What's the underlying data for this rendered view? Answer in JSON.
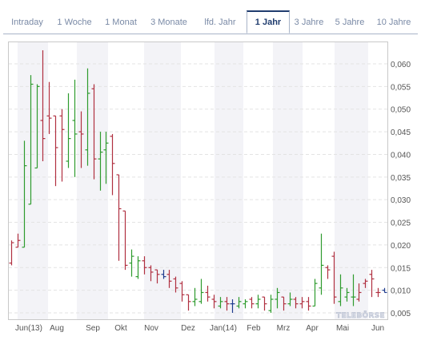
{
  "tabs": [
    {
      "label": "Intraday"
    },
    {
      "label": "1 Woche"
    },
    {
      "label": "1 Monat"
    },
    {
      "label": "3 Monate"
    },
    {
      "label": "lfd. Jahr"
    },
    {
      "label": "1 Jahr",
      "active": true
    },
    {
      "label": "3 Jahre"
    },
    {
      "label": "5 Jahre"
    },
    {
      "label": "10 Jahre"
    }
  ],
  "watermark": "TELEBÖRSE",
  "colors": {
    "up": "#2e9b2e",
    "down": "#b03040",
    "neutral": "#1f3c8e",
    "band": "#f3f3f7",
    "grid": "#e3e3e3"
  },
  "chart_data": {
    "type": "ohlc",
    "y_axis": {
      "min": 0.005,
      "max": 0.06,
      "ticks": [
        "0,005",
        "0,010",
        "0,015",
        "0,020",
        "0,025",
        "0,030",
        "0,035",
        "0,040",
        "0,045",
        "0,050",
        "0,055",
        "0,060"
      ]
    },
    "x_labels": [
      "Jun(13)",
      "Aug",
      "Sep",
      "Okt",
      "Nov",
      "Dez",
      "Jan(14)",
      "Feb",
      "Mrz",
      "Apr",
      "Mai",
      "Jun"
    ],
    "grid": true,
    "weekly": [
      {
        "h": 0.021,
        "l": 0.0155,
        "o": 0.016,
        "c": 0.0205,
        "dir": "down"
      },
      {
        "h": 0.0225,
        "l": 0.0195,
        "o": 0.0195,
        "c": 0.021,
        "dir": "down"
      },
      {
        "h": 0.043,
        "l": 0.0195,
        "o": 0.0195,
        "c": 0.0375,
        "dir": "up"
      },
      {
        "h": 0.0575,
        "l": 0.029,
        "o": 0.029,
        "c": 0.0555,
        "dir": "up"
      },
      {
        "h": 0.0555,
        "l": 0.037,
        "o": 0.037,
        "c": 0.055,
        "dir": "up"
      },
      {
        "h": 0.063,
        "l": 0.0385,
        "o": 0.0475,
        "c": 0.0435,
        "dir": "down"
      },
      {
        "h": 0.056,
        "l": 0.0445,
        "o": 0.0485,
        "c": 0.048,
        "dir": "down"
      },
      {
        "h": 0.0485,
        "l": 0.033,
        "o": 0.0485,
        "c": 0.0415,
        "dir": "down"
      },
      {
        "h": 0.05,
        "l": 0.034,
        "o": 0.0485,
        "c": 0.0455,
        "dir": "down"
      },
      {
        "h": 0.0535,
        "l": 0.037,
        "o": 0.0385,
        "c": 0.0435,
        "dir": "up"
      },
      {
        "h": 0.0565,
        "l": 0.035,
        "o": 0.0475,
        "c": 0.0445,
        "dir": "up"
      },
      {
        "h": 0.0495,
        "l": 0.037,
        "o": 0.045,
        "c": 0.0445,
        "dir": "down"
      },
      {
        "h": 0.059,
        "l": 0.0375,
        "o": 0.041,
        "c": 0.0535,
        "dir": "up"
      },
      {
        "h": 0.0555,
        "l": 0.0345,
        "o": 0.0545,
        "c": 0.039,
        "dir": "down"
      },
      {
        "h": 0.045,
        "l": 0.032,
        "o": 0.039,
        "c": 0.0405,
        "dir": "up"
      },
      {
        "h": 0.045,
        "l": 0.0335,
        "o": 0.041,
        "c": 0.0425,
        "dir": "up"
      },
      {
        "h": 0.0445,
        "l": 0.031,
        "o": 0.044,
        "c": 0.038,
        "dir": "down"
      },
      {
        "h": 0.0355,
        "l": 0.0165,
        "o": 0.0355,
        "c": 0.028,
        "dir": "down"
      },
      {
        "h": 0.0275,
        "l": 0.0145,
        "o": 0.0275,
        "c": 0.0155,
        "dir": "down"
      },
      {
        "h": 0.019,
        "l": 0.013,
        "o": 0.016,
        "c": 0.0175,
        "dir": "up"
      },
      {
        "h": 0.0175,
        "l": 0.0125,
        "o": 0.013,
        "c": 0.0165,
        "dir": "up"
      },
      {
        "h": 0.0175,
        "l": 0.0135,
        "o": 0.0165,
        "c": 0.015,
        "dir": "down"
      },
      {
        "h": 0.0155,
        "l": 0.012,
        "o": 0.015,
        "c": 0.014,
        "dir": "down"
      },
      {
        "h": 0.0145,
        "l": 0.0115,
        "o": 0.0145,
        "c": 0.0135,
        "dir": "down"
      },
      {
        "h": 0.0145,
        "l": 0.0125,
        "o": 0.0135,
        "c": 0.013,
        "dir": "neutral"
      },
      {
        "h": 0.0145,
        "l": 0.0105,
        "o": 0.0135,
        "c": 0.012,
        "dir": "down"
      },
      {
        "h": 0.013,
        "l": 0.0095,
        "o": 0.0125,
        "c": 0.0105,
        "dir": "down"
      },
      {
        "h": 0.012,
        "l": 0.0075,
        "o": 0.0115,
        "c": 0.009,
        "dir": "down"
      },
      {
        "h": 0.009,
        "l": 0.0055,
        "o": 0.009,
        "c": 0.0075,
        "dir": "down"
      },
      {
        "h": 0.0105,
        "l": 0.0065,
        "o": 0.0075,
        "c": 0.008,
        "dir": "up"
      },
      {
        "h": 0.0125,
        "l": 0.007,
        "o": 0.0075,
        "c": 0.0095,
        "dir": "up"
      },
      {
        "h": 0.011,
        "l": 0.0075,
        "o": 0.0095,
        "c": 0.0085,
        "dir": "down"
      },
      {
        "h": 0.009,
        "l": 0.006,
        "o": 0.008,
        "c": 0.0075,
        "dir": "down"
      },
      {
        "h": 0.0085,
        "l": 0.006,
        "o": 0.0065,
        "c": 0.0075,
        "dir": "up"
      },
      {
        "h": 0.0085,
        "l": 0.0055,
        "o": 0.0075,
        "c": 0.007,
        "dir": "down"
      },
      {
        "h": 0.008,
        "l": 0.005,
        "o": 0.007,
        "c": 0.007,
        "dir": "neutral"
      },
      {
        "h": 0.0085,
        "l": 0.006,
        "o": 0.0065,
        "c": 0.0075,
        "dir": "up"
      },
      {
        "h": 0.008,
        "l": 0.006,
        "o": 0.007,
        "c": 0.0075,
        "dir": "up"
      },
      {
        "h": 0.0085,
        "l": 0.006,
        "o": 0.008,
        "c": 0.007,
        "dir": "down"
      },
      {
        "h": 0.009,
        "l": 0.006,
        "o": 0.007,
        "c": 0.008,
        "dir": "up"
      },
      {
        "h": 0.0085,
        "l": 0.0055,
        "o": 0.0085,
        "c": 0.007,
        "dir": "down"
      },
      {
        "h": 0.009,
        "l": 0.005,
        "o": 0.0055,
        "c": 0.008,
        "dir": "up"
      },
      {
        "h": 0.0105,
        "l": 0.006,
        "o": 0.008,
        "c": 0.0095,
        "dir": "up"
      },
      {
        "h": 0.0085,
        "l": 0.0055,
        "o": 0.0085,
        "c": 0.007,
        "dir": "down"
      },
      {
        "h": 0.0095,
        "l": 0.0065,
        "o": 0.007,
        "c": 0.008,
        "dir": "up"
      },
      {
        "h": 0.0085,
        "l": 0.006,
        "o": 0.008,
        "c": 0.007,
        "dir": "down"
      },
      {
        "h": 0.0085,
        "l": 0.006,
        "o": 0.007,
        "c": 0.0075,
        "dir": "down"
      },
      {
        "h": 0.0085,
        "l": 0.0055,
        "o": 0.0075,
        "c": 0.0065,
        "dir": "down"
      },
      {
        "h": 0.0125,
        "l": 0.0065,
        "o": 0.0065,
        "c": 0.0115,
        "dir": "up"
      },
      {
        "h": 0.0225,
        "l": 0.009,
        "o": 0.0105,
        "c": 0.0155,
        "dir": "up"
      },
      {
        "h": 0.0155,
        "l": 0.0125,
        "o": 0.015,
        "c": 0.0145,
        "dir": "down"
      },
      {
        "h": 0.0185,
        "l": 0.007,
        "o": 0.0175,
        "c": 0.0085,
        "dir": "down"
      },
      {
        "h": 0.0135,
        "l": 0.0065,
        "o": 0.0075,
        "c": 0.0105,
        "dir": "up"
      },
      {
        "h": 0.0105,
        "l": 0.0075,
        "o": 0.0085,
        "c": 0.0095,
        "dir": "up"
      },
      {
        "h": 0.0135,
        "l": 0.0065,
        "o": 0.0085,
        "c": 0.0085,
        "dir": "up"
      },
      {
        "h": 0.0115,
        "l": 0.0075,
        "o": 0.008,
        "c": 0.0095,
        "dir": "down"
      },
      {
        "h": 0.0125,
        "l": 0.0105,
        "o": 0.0115,
        "c": 0.012,
        "dir": "down"
      },
      {
        "h": 0.0145,
        "l": 0.0085,
        "o": 0.0135,
        "c": 0.0125,
        "dir": "down"
      },
      {
        "h": 0.0105,
        "l": 0.0085,
        "o": 0.0095,
        "c": 0.0095,
        "dir": "down"
      },
      {
        "h": 0.0105,
        "l": 0.0095,
        "o": 0.01,
        "c": 0.0095,
        "dir": "neutral"
      }
    ]
  }
}
